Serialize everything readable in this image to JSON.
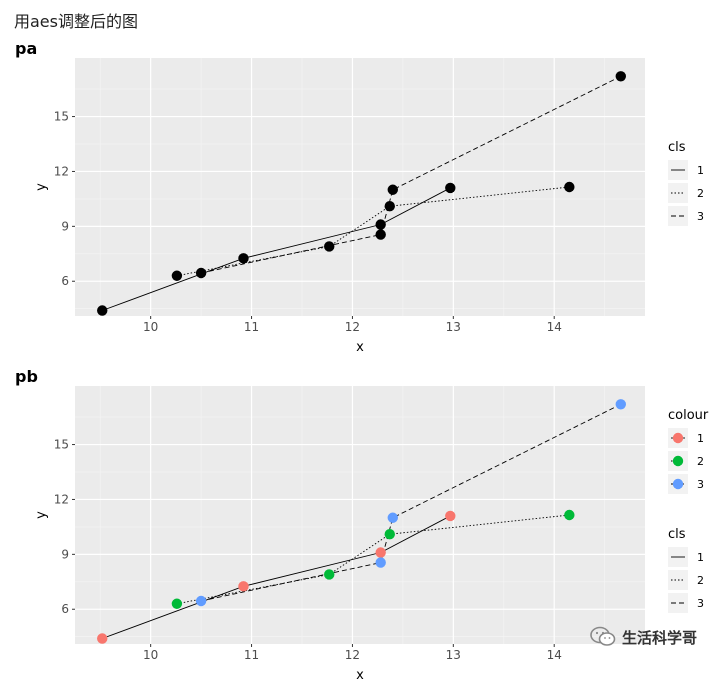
{
  "page": {
    "title": "用aes调整后的图",
    "watermark": "生活科学哥",
    "watermark_icon": "wechat-icon"
  },
  "theme": {
    "panel_bg": "#ebebeb",
    "grid_major": "#ffffff",
    "grid_minor": "#f5f5f5",
    "point_black": "#000000",
    "colour_1": "#F8766D",
    "colour_2": "#00BA38",
    "colour_3": "#619CFF"
  },
  "chart_data": [
    {
      "id": "pa",
      "tag": "pa",
      "type": "scatter",
      "xlabel": "x",
      "ylabel": "y",
      "xlim": [
        9.25,
        14.9
      ],
      "ylim": [
        4.1,
        18.2
      ],
      "xticks": [
        10,
        11,
        12,
        13,
        14
      ],
      "yticks": [
        6,
        9,
        12,
        15
      ],
      "legends": [
        {
          "title": "cls",
          "kind": "linetype",
          "entries": [
            "1",
            "2",
            "3"
          ]
        }
      ],
      "points": [
        {
          "x": 9.52,
          "y": 4.4,
          "cls": "1"
        },
        {
          "x": 10.26,
          "y": 6.3,
          "cls": "2"
        },
        {
          "x": 10.5,
          "y": 6.45,
          "cls": "3"
        },
        {
          "x": 10.92,
          "y": 7.25,
          "cls": "1"
        },
        {
          "x": 11.77,
          "y": 7.9,
          "cls": "2"
        },
        {
          "x": 12.28,
          "y": 9.1,
          "cls": "1"
        },
        {
          "x": 12.28,
          "y": 8.55,
          "cls": "3"
        },
        {
          "x": 12.37,
          "y": 10.1,
          "cls": "2"
        },
        {
          "x": 12.4,
          "y": 11.0,
          "cls": "3"
        },
        {
          "x": 12.97,
          "y": 11.1,
          "cls": "1"
        },
        {
          "x": 14.15,
          "y": 11.15,
          "cls": "2"
        },
        {
          "x": 14.66,
          "y": 17.2,
          "cls": "3"
        }
      ]
    },
    {
      "id": "pb",
      "tag": "pb",
      "type": "scatter",
      "xlabel": "x",
      "ylabel": "y",
      "xlim": [
        9.25,
        14.9
      ],
      "ylim": [
        4.1,
        18.2
      ],
      "xticks": [
        10,
        11,
        12,
        13,
        14
      ],
      "yticks": [
        6,
        9,
        12,
        15
      ],
      "legends": [
        {
          "title": "colour",
          "kind": "colour",
          "entries": [
            "1",
            "2",
            "3"
          ]
        },
        {
          "title": "cls",
          "kind": "linetype",
          "entries": [
            "1",
            "2",
            "3"
          ]
        }
      ],
      "points": [
        {
          "x": 9.52,
          "y": 4.4,
          "cls": "1"
        },
        {
          "x": 10.26,
          "y": 6.3,
          "cls": "2"
        },
        {
          "x": 10.5,
          "y": 6.45,
          "cls": "3"
        },
        {
          "x": 10.92,
          "y": 7.25,
          "cls": "1"
        },
        {
          "x": 11.77,
          "y": 7.9,
          "cls": "2"
        },
        {
          "x": 12.28,
          "y": 9.1,
          "cls": "1"
        },
        {
          "x": 12.28,
          "y": 8.55,
          "cls": "3"
        },
        {
          "x": 12.37,
          "y": 10.1,
          "cls": "2"
        },
        {
          "x": 12.4,
          "y": 11.0,
          "cls": "3"
        },
        {
          "x": 12.97,
          "y": 11.1,
          "cls": "1"
        },
        {
          "x": 14.15,
          "y": 11.15,
          "cls": "2"
        },
        {
          "x": 14.66,
          "y": 17.2,
          "cls": "3"
        }
      ]
    }
  ]
}
